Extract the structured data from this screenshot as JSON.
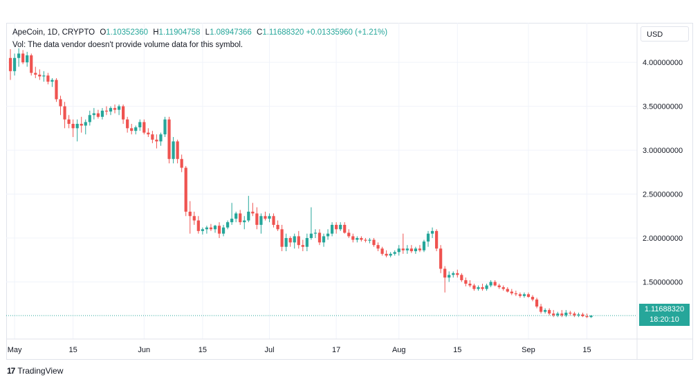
{
  "legend": {
    "symbol": "ApeCoin, 1D, CRYPTO",
    "open_label": "O",
    "open": "1.10352360",
    "high_label": "H",
    "high": "1.11904758",
    "low_label": "L",
    "low": "1.08947366",
    "close_label": "C",
    "close": "1.11688320",
    "change": "+0.01335960 (+1.21%)",
    "volume_note": "Vol: The data vendor doesn't provide volume data for this symbol."
  },
  "currency_button": "USD",
  "price_tag": {
    "price": "1.11688320",
    "countdown": "18:20:10"
  },
  "branding": "TradingView",
  "colors": {
    "up": "#26a69a",
    "down": "#ef5350",
    "grid": "#f0f3fa",
    "text": "#131722",
    "axis_text": "#131722"
  },
  "chart_data": {
    "type": "candlestick",
    "y_ticks": [
      "4.00000000",
      "3.50000000",
      "3.00000000",
      "2.50000000",
      "2.00000000",
      "1.50000000"
    ],
    "y_tick_values": [
      4.0,
      3.5,
      3.0,
      2.5,
      2.0,
      1.5
    ],
    "ylim": [
      0.85,
      4.45
    ],
    "x_ticks": [
      {
        "label": "May",
        "day": 0
      },
      {
        "label": "15",
        "day": 14
      },
      {
        "label": "Jun",
        "day": 31
      },
      {
        "label": "15",
        "day": 45
      },
      {
        "label": "Jul",
        "day": 61
      },
      {
        "label": "17",
        "day": 77
      },
      {
        "label": "Aug",
        "day": 92
      },
      {
        "label": "15",
        "day": 106
      },
      {
        "label": "Sep",
        "day": 123
      },
      {
        "label": "15",
        "day": 137
      }
    ],
    "xlim": [
      -2,
      149
    ],
    "last_price": 1.1168832,
    "candles": [
      [
        -1,
        4.05,
        4.15,
        3.8,
        3.9
      ],
      [
        0,
        3.9,
        4.1,
        3.85,
        4.05
      ],
      [
        1,
        4.05,
        4.16,
        3.95,
        4.1
      ],
      [
        2,
        4.1,
        4.14,
        3.98,
        4.0
      ],
      [
        3,
        4.0,
        4.12,
        3.95,
        4.08
      ],
      [
        4,
        4.08,
        4.1,
        3.85,
        3.88
      ],
      [
        5,
        3.88,
        3.95,
        3.82,
        3.86
      ],
      [
        6,
        3.86,
        3.92,
        3.8,
        3.84
      ],
      [
        7,
        3.84,
        3.9,
        3.78,
        3.85
      ],
      [
        8,
        3.85,
        3.88,
        3.75,
        3.78
      ],
      [
        9,
        3.78,
        3.82,
        3.72,
        3.8
      ],
      [
        10,
        3.8,
        3.82,
        3.55,
        3.58
      ],
      [
        11,
        3.58,
        3.62,
        3.4,
        3.5
      ],
      [
        12,
        3.5,
        3.55,
        3.25,
        3.35
      ],
      [
        13,
        3.35,
        3.4,
        3.25,
        3.3
      ],
      [
        14,
        3.3,
        3.35,
        3.15,
        3.25
      ],
      [
        15,
        3.25,
        3.35,
        3.1,
        3.3
      ],
      [
        16,
        3.3,
        3.38,
        3.2,
        3.28
      ],
      [
        17,
        3.28,
        3.35,
        3.18,
        3.32
      ],
      [
        18,
        3.32,
        3.45,
        3.28,
        3.4
      ],
      [
        19,
        3.4,
        3.48,
        3.35,
        3.42
      ],
      [
        20,
        3.42,
        3.46,
        3.36,
        3.38
      ],
      [
        21,
        3.38,
        3.48,
        3.35,
        3.45
      ],
      [
        22,
        3.45,
        3.5,
        3.4,
        3.44
      ],
      [
        23,
        3.44,
        3.5,
        3.4,
        3.48
      ],
      [
        24,
        3.48,
        3.52,
        3.42,
        3.46
      ],
      [
        25,
        3.46,
        3.52,
        3.4,
        3.5
      ],
      [
        26,
        3.5,
        3.52,
        3.3,
        3.35
      ],
      [
        27,
        3.35,
        3.38,
        3.2,
        3.25
      ],
      [
        28,
        3.25,
        3.3,
        3.18,
        3.22
      ],
      [
        29,
        3.22,
        3.28,
        3.18,
        3.26
      ],
      [
        30,
        3.26,
        3.35,
        3.22,
        3.32
      ],
      [
        31,
        3.32,
        3.35,
        3.18,
        3.2
      ],
      [
        32,
        3.2,
        3.25,
        3.15,
        3.18
      ],
      [
        33,
        3.18,
        3.22,
        3.08,
        3.12
      ],
      [
        34,
        3.12,
        3.18,
        3.02,
        3.1
      ],
      [
        35,
        3.1,
        3.2,
        3.05,
        3.18
      ],
      [
        36,
        3.18,
        3.38,
        3.15,
        3.35
      ],
      [
        37,
        3.35,
        3.38,
        2.85,
        2.9
      ],
      [
        38,
        2.9,
        3.15,
        2.85,
        3.1
      ],
      [
        39,
        3.1,
        3.12,
        2.85,
        2.9
      ],
      [
        40,
        2.9,
        2.95,
        2.75,
        2.8
      ],
      [
        41,
        2.8,
        2.82,
        2.25,
        2.3
      ],
      [
        42,
        2.3,
        2.42,
        2.05,
        2.25
      ],
      [
        43,
        2.25,
        2.3,
        2.15,
        2.2
      ],
      [
        44,
        2.2,
        2.25,
        2.05,
        2.08
      ],
      [
        45,
        2.08,
        2.12,
        2.04,
        2.1
      ],
      [
        46,
        2.1,
        2.14,
        2.05,
        2.12
      ],
      [
        47,
        2.12,
        2.16,
        2.08,
        2.1
      ],
      [
        48,
        2.1,
        2.15,
        2.06,
        2.14
      ],
      [
        49,
        2.14,
        2.18,
        2.0,
        2.05
      ],
      [
        50,
        2.05,
        2.15,
        2.02,
        2.12
      ],
      [
        51,
        2.12,
        2.2,
        2.1,
        2.18
      ],
      [
        52,
        2.18,
        2.4,
        2.15,
        2.22
      ],
      [
        53,
        2.22,
        2.3,
        2.18,
        2.28
      ],
      [
        54,
        2.28,
        2.32,
        2.15,
        2.18
      ],
      [
        55,
        2.18,
        2.25,
        2.1,
        2.2
      ],
      [
        56,
        2.2,
        2.48,
        2.18,
        2.3
      ],
      [
        57,
        2.3,
        2.4,
        2.25,
        2.28
      ],
      [
        58,
        2.28,
        2.35,
        2.1,
        2.15
      ],
      [
        59,
        2.15,
        2.28,
        2.05,
        2.25
      ],
      [
        60,
        2.25,
        2.3,
        2.2,
        2.22
      ],
      [
        61,
        2.22,
        2.28,
        2.18,
        2.25
      ],
      [
        62,
        2.25,
        2.28,
        2.12,
        2.15
      ],
      [
        63,
        2.15,
        2.2,
        2.08,
        2.1
      ],
      [
        64,
        2.1,
        2.15,
        1.85,
        1.9
      ],
      [
        65,
        1.9,
        2.05,
        1.85,
        2.0
      ],
      [
        66,
        2.0,
        2.02,
        1.9,
        1.95
      ],
      [
        67,
        1.95,
        2.05,
        1.88,
        2.02
      ],
      [
        68,
        2.02,
        2.08,
        1.88,
        1.92
      ],
      [
        69,
        1.92,
        1.98,
        1.85,
        1.9
      ],
      [
        70,
        1.9,
        2.05,
        1.85,
        2.0
      ],
      [
        71,
        2.0,
        2.35,
        1.98,
        2.05
      ],
      [
        72,
        2.05,
        2.1,
        2.0,
        2.06
      ],
      [
        73,
        2.06,
        2.1,
        1.92,
        1.95
      ],
      [
        74,
        1.95,
        2.05,
        1.9,
        2.02
      ],
      [
        75,
        2.02,
        2.1,
        1.98,
        2.05
      ],
      [
        76,
        2.05,
        2.18,
        2.02,
        2.15
      ],
      [
        77,
        2.15,
        2.18,
        2.05,
        2.1
      ],
      [
        78,
        2.1,
        2.18,
        2.08,
        2.15
      ],
      [
        79,
        2.15,
        2.18,
        2.05,
        2.06
      ],
      [
        80,
        2.06,
        2.1,
        2.0,
        2.02
      ],
      [
        81,
        2.02,
        2.05,
        1.95,
        1.98
      ],
      [
        82,
        1.98,
        2.02,
        1.95,
        2.0
      ],
      [
        83,
        2.0,
        2.02,
        1.96,
        1.98
      ],
      [
        84,
        1.98,
        2.0,
        1.95,
        1.97
      ],
      [
        85,
        1.97,
        2.0,
        1.94,
        1.98
      ],
      [
        86,
        1.98,
        2.0,
        1.9,
        1.92
      ],
      [
        87,
        1.92,
        1.95,
        1.85,
        1.88
      ],
      [
        88,
        1.88,
        1.9,
        1.8,
        1.82
      ],
      [
        89,
        1.82,
        1.86,
        1.78,
        1.8
      ],
      [
        90,
        1.8,
        1.84,
        1.78,
        1.82
      ],
      [
        91,
        1.82,
        1.86,
        1.8,
        1.84
      ],
      [
        92,
        1.84,
        1.92,
        1.8,
        1.88
      ],
      [
        93,
        1.88,
        2.05,
        1.82,
        1.86
      ],
      [
        94,
        1.86,
        1.92,
        1.82,
        1.88
      ],
      [
        95,
        1.88,
        1.92,
        1.83,
        1.85
      ],
      [
        96,
        1.85,
        1.9,
        1.82,
        1.88
      ],
      [
        97,
        1.88,
        1.92,
        1.84,
        1.86
      ],
      [
        98,
        1.86,
        1.98,
        1.84,
        1.96
      ],
      [
        99,
        1.96,
        2.08,
        1.9,
        2.05
      ],
      [
        100,
        2.05,
        2.12,
        2.0,
        2.08
      ],
      [
        101,
        2.08,
        2.1,
        1.85,
        1.88
      ],
      [
        102,
        1.88,
        1.92,
        1.6,
        1.65
      ],
      [
        103,
        1.65,
        1.68,
        1.38,
        1.55
      ],
      [
        104,
        1.55,
        1.62,
        1.5,
        1.58
      ],
      [
        105,
        1.58,
        1.62,
        1.55,
        1.6
      ],
      [
        106,
        1.6,
        1.64,
        1.55,
        1.58
      ],
      [
        107,
        1.58,
        1.6,
        1.5,
        1.52
      ],
      [
        108,
        1.52,
        1.55,
        1.45,
        1.48
      ],
      [
        109,
        1.48,
        1.52,
        1.44,
        1.46
      ],
      [
        110,
        1.46,
        1.48,
        1.4,
        1.42
      ],
      [
        111,
        1.42,
        1.46,
        1.4,
        1.44
      ],
      [
        112,
        1.44,
        1.48,
        1.4,
        1.42
      ],
      [
        113,
        1.42,
        1.48,
        1.4,
        1.46
      ],
      [
        114,
        1.46,
        1.52,
        1.44,
        1.5
      ],
      [
        115,
        1.5,
        1.52,
        1.45,
        1.46
      ],
      [
        116,
        1.46,
        1.48,
        1.42,
        1.44
      ],
      [
        117,
        1.44,
        1.46,
        1.4,
        1.42
      ],
      [
        118,
        1.42,
        1.44,
        1.38,
        1.39
      ],
      [
        119,
        1.39,
        1.42,
        1.35,
        1.37
      ],
      [
        120,
        1.37,
        1.4,
        1.34,
        1.36
      ],
      [
        121,
        1.36,
        1.38,
        1.32,
        1.34
      ],
      [
        122,
        1.34,
        1.38,
        1.32,
        1.36
      ],
      [
        123,
        1.36,
        1.38,
        1.32,
        1.33
      ],
      [
        124,
        1.33,
        1.35,
        1.28,
        1.3
      ],
      [
        125,
        1.3,
        1.32,
        1.2,
        1.22
      ],
      [
        126,
        1.22,
        1.25,
        1.14,
        1.16
      ],
      [
        127,
        1.16,
        1.2,
        1.14,
        1.18
      ],
      [
        128,
        1.18,
        1.2,
        1.12,
        1.14
      ],
      [
        129,
        1.14,
        1.18,
        1.1,
        1.12
      ],
      [
        130,
        1.12,
        1.16,
        1.1,
        1.14
      ],
      [
        131,
        1.14,
        1.18,
        1.1,
        1.12
      ],
      [
        132,
        1.12,
        1.18,
        1.1,
        1.15
      ],
      [
        133,
        1.15,
        1.17,
        1.12,
        1.14
      ],
      [
        134,
        1.14,
        1.16,
        1.1,
        1.12
      ],
      [
        135,
        1.12,
        1.15,
        1.1,
        1.13
      ],
      [
        136,
        1.13,
        1.15,
        1.1,
        1.11
      ],
      [
        137,
        1.11,
        1.14,
        1.09,
        1.1
      ],
      [
        138,
        1.1,
        1.12,
        1.09,
        1.1169
      ]
    ]
  }
}
